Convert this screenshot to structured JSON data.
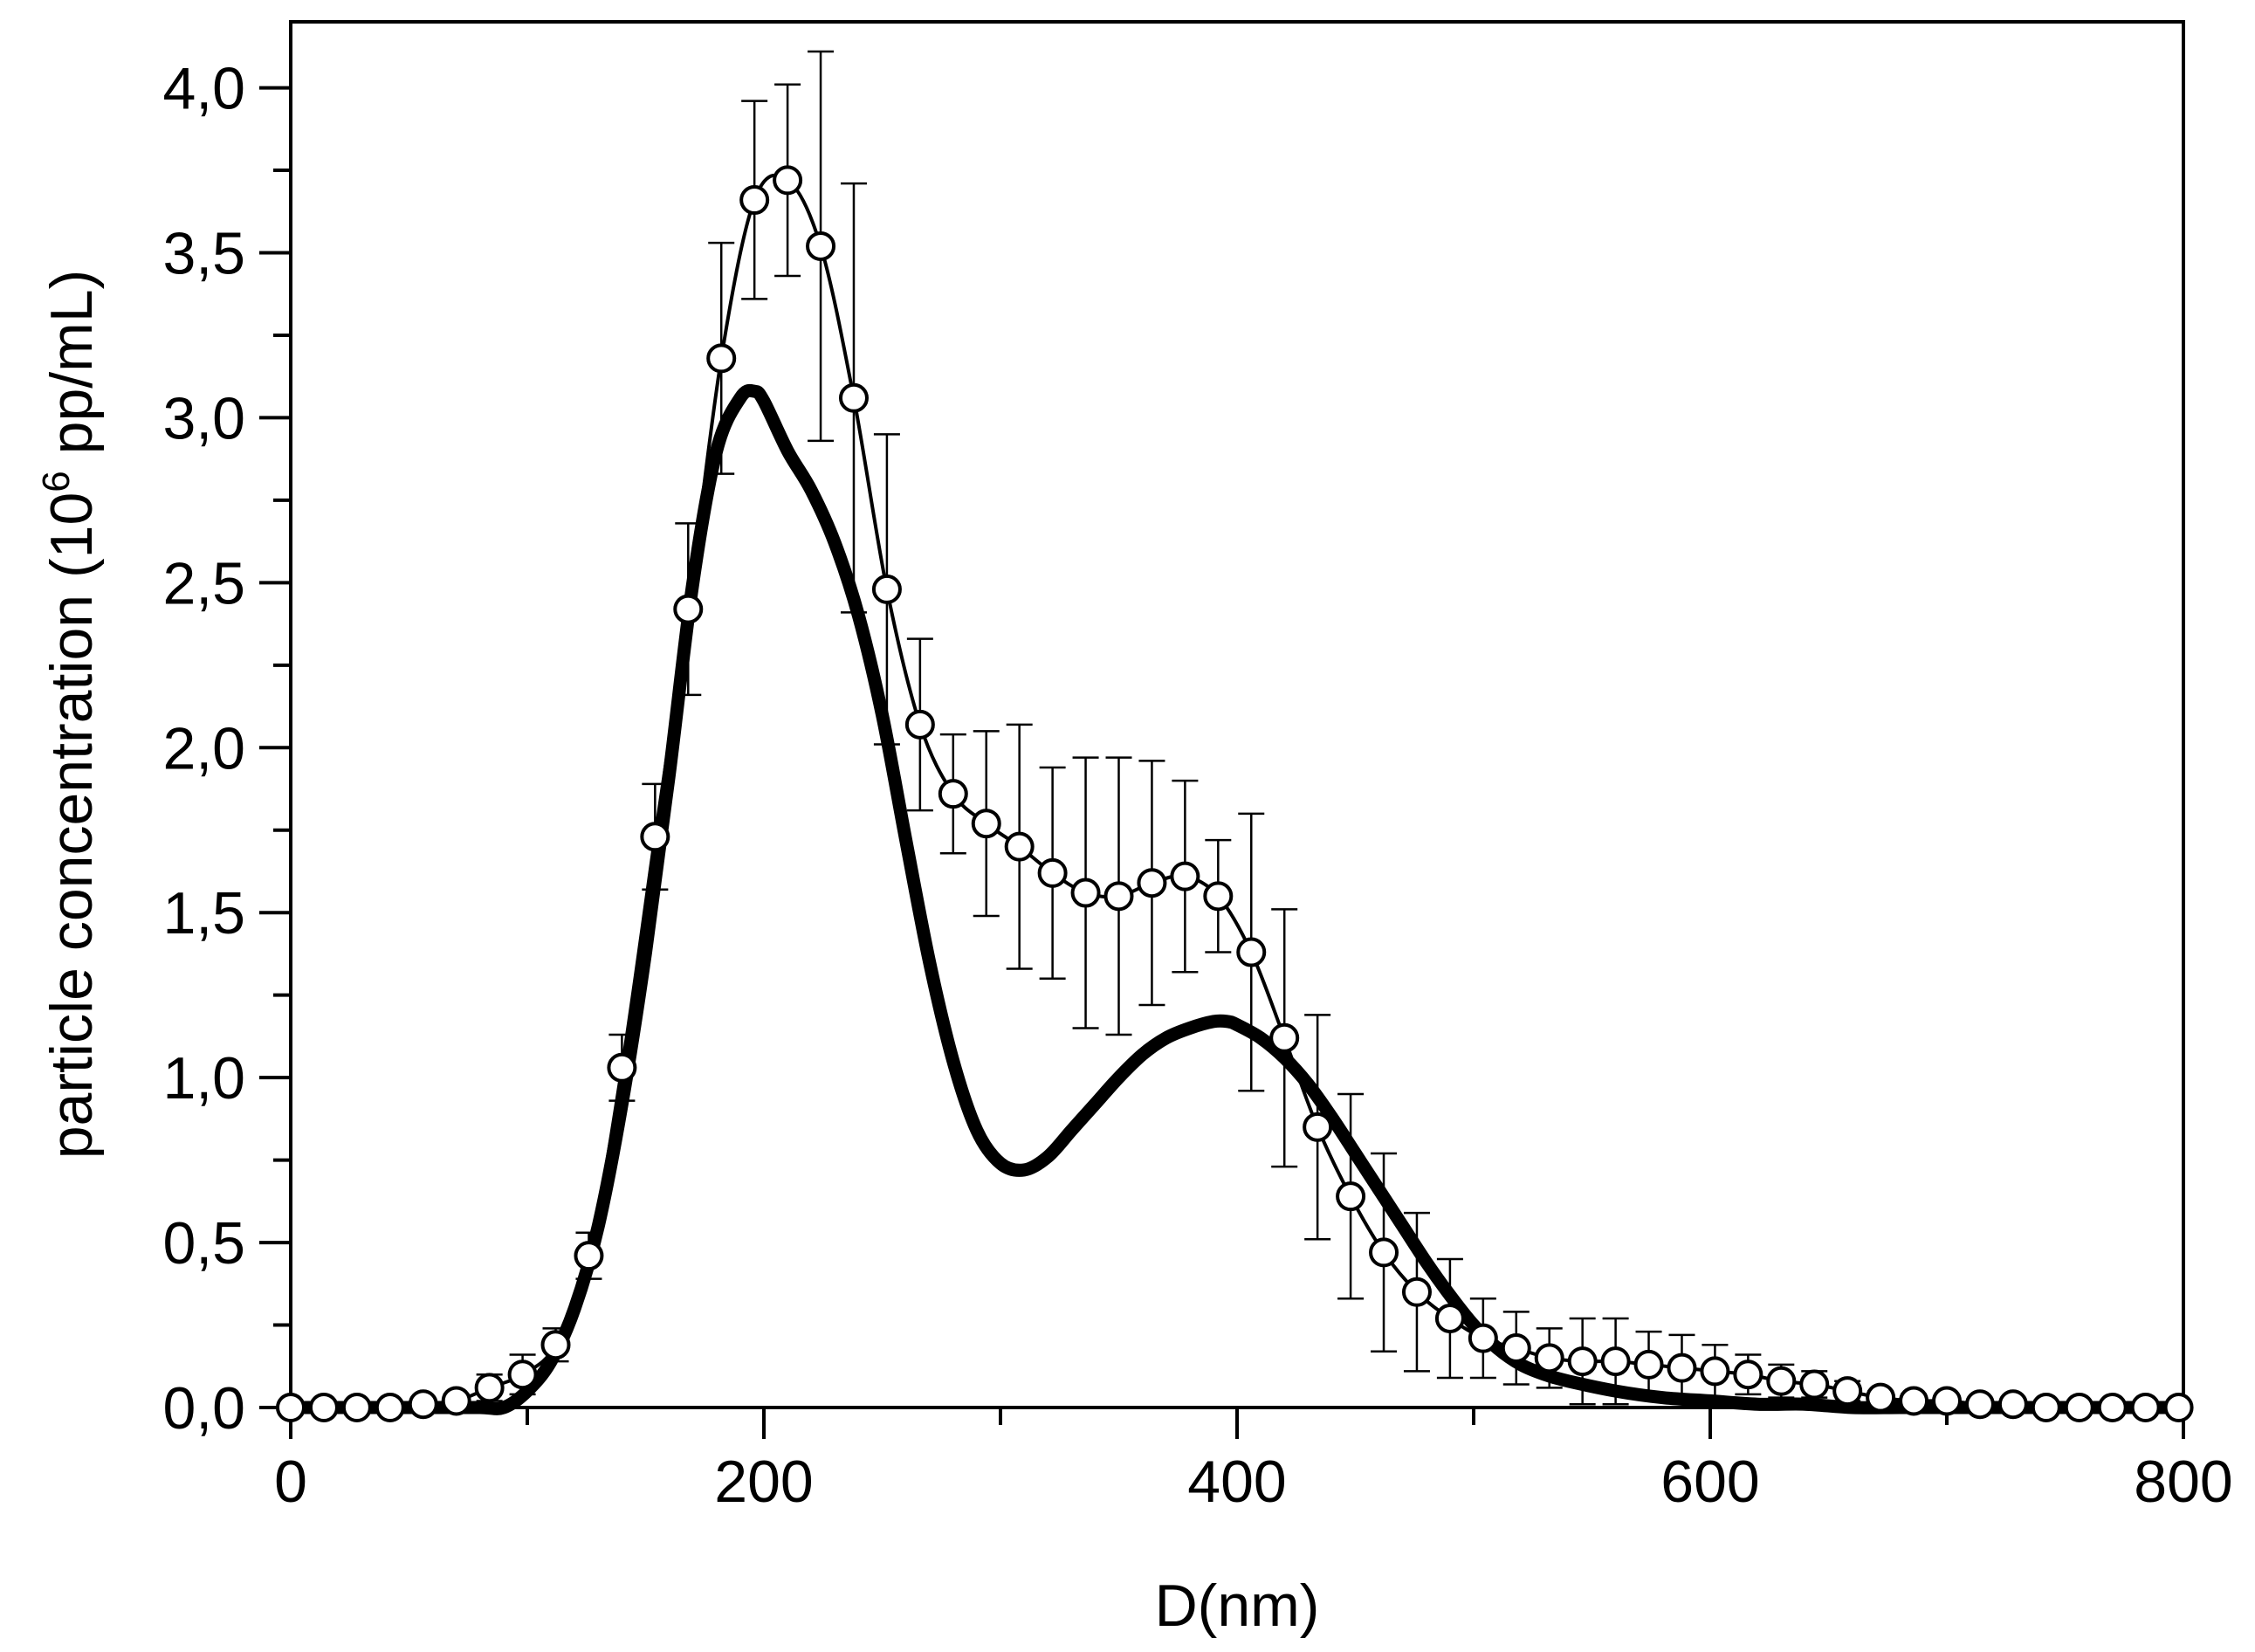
{
  "chart_data": {
    "type": "line",
    "title": "",
    "xlabel": "D(nm)",
    "ylabel": "particle concentration (10",
    "ylabel_sup": "6",
    "ylabel_suffix": " pp/mL)",
    "xlim": [
      0,
      800
    ],
    "ylim": [
      0,
      4.2
    ],
    "x_ticks": [
      0,
      200,
      400,
      600,
      800
    ],
    "x_tick_labels": [
      "0",
      "200",
      "400",
      "600",
      "800"
    ],
    "y_ticks": [
      0,
      0.5,
      1.0,
      1.5,
      2.0,
      2.5,
      3.0,
      3.5,
      4.0
    ],
    "y_tick_labels": [
      "0,0",
      "0,5",
      "1,0",
      "1,5",
      "2,0",
      "2,5",
      "3,0",
      "3,5",
      "4,0"
    ],
    "grid": false,
    "legend": "none",
    "colors": {
      "line": "#000000",
      "marker_fill": "#ffffff",
      "background": "#ffffff"
    },
    "series": [
      {
        "style": "open-circles-with-thin-line-and-error-bars",
        "x": [
          0,
          14,
          28,
          42,
          56,
          70,
          84,
          98,
          112,
          126,
          140,
          154,
          168,
          182,
          196,
          210,
          224,
          238,
          252,
          266,
          280,
          294,
          308,
          322,
          336,
          350,
          364,
          378,
          392,
          406,
          420,
          434,
          448,
          462,
          476,
          490,
          504,
          518,
          532,
          546,
          560,
          574,
          588,
          602,
          616,
          630,
          644,
          658,
          672,
          686,
          700,
          714,
          728,
          742,
          756,
          770,
          784,
          798
        ],
        "y": [
          0.0,
          0.0,
          0.0,
          0.0,
          0.01,
          0.02,
          0.06,
          0.1,
          0.19,
          0.46,
          1.03,
          1.73,
          2.42,
          3.18,
          3.66,
          3.72,
          3.52,
          3.06,
          2.48,
          2.07,
          1.86,
          1.77,
          1.7,
          1.62,
          1.56,
          1.55,
          1.59,
          1.61,
          1.55,
          1.38,
          1.12,
          0.85,
          0.64,
          0.47,
          0.35,
          0.27,
          0.21,
          0.18,
          0.15,
          0.14,
          0.14,
          0.13,
          0.12,
          0.11,
          0.1,
          0.08,
          0.07,
          0.05,
          0.03,
          0.02,
          0.02,
          0.01,
          0.01,
          0.0,
          0.0,
          0.0,
          0.0,
          0.0
        ],
        "err": [
          0.0,
          0.0,
          0.0,
          0.0,
          0.01,
          0.02,
          0.04,
          0.06,
          0.05,
          0.07,
          0.1,
          0.16,
          0.26,
          0.35,
          0.3,
          0.29,
          0.59,
          0.65,
          0.47,
          0.26,
          0.18,
          0.28,
          0.37,
          0.32,
          0.41,
          0.42,
          0.37,
          0.29,
          0.17,
          0.42,
          0.39,
          0.34,
          0.31,
          0.3,
          0.24,
          0.18,
          0.12,
          0.11,
          0.09,
          0.13,
          0.13,
          0.1,
          0.1,
          0.08,
          0.06,
          0.05,
          0.04,
          0.03,
          0.02,
          0.02,
          0.01,
          0.01,
          0.01,
          0.0,
          0.0,
          0.0,
          0.0,
          0.0
        ]
      },
      {
        "style": "thick-solid-line",
        "x": [
          0,
          60,
          80,
          90,
          100,
          110,
          120,
          130,
          140,
          150,
          160,
          170,
          180,
          190,
          196,
          200,
          210,
          220,
          230,
          240,
          250,
          260,
          270,
          280,
          290,
          300,
          310,
          320,
          330,
          340,
          350,
          360,
          370,
          380,
          390,
          396,
          400,
          410,
          420,
          430,
          440,
          450,
          460,
          470,
          480,
          490,
          500,
          510,
          520,
          530,
          540,
          560,
          580,
          600,
          620,
          640,
          660,
          680,
          700,
          800
        ],
        "y": [
          0.0,
          0.0,
          0.0,
          0.0,
          0.05,
          0.14,
          0.3,
          0.55,
          0.92,
          1.38,
          1.92,
          2.5,
          2.9,
          3.06,
          3.08,
          3.05,
          2.9,
          2.78,
          2.62,
          2.4,
          2.1,
          1.72,
          1.35,
          1.05,
          0.84,
          0.74,
          0.72,
          0.76,
          0.84,
          0.92,
          1.0,
          1.07,
          1.12,
          1.15,
          1.17,
          1.17,
          1.16,
          1.12,
          1.06,
          0.98,
          0.88,
          0.77,
          0.66,
          0.55,
          0.44,
          0.34,
          0.25,
          0.18,
          0.13,
          0.1,
          0.08,
          0.05,
          0.03,
          0.02,
          0.01,
          0.01,
          0.0,
          0.0,
          0.0,
          0.0
        ]
      }
    ]
  }
}
